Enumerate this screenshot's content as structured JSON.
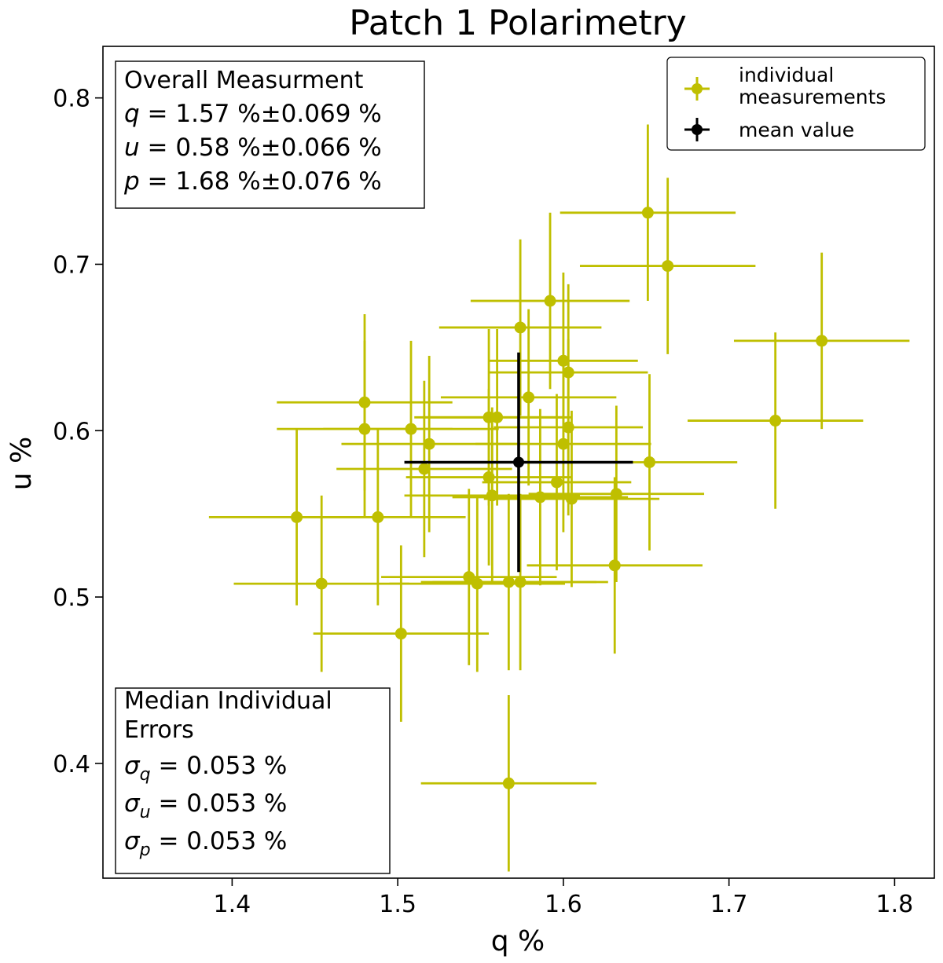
{
  "chart_data": {
    "type": "scatter",
    "title": "Patch 1 Polarimetry",
    "xlabel": "q %",
    "ylabel": "u %",
    "xlim": [
      1.322,
      1.824
    ],
    "ylim": [
      0.331,
      0.831
    ],
    "xticks": [
      1.4,
      1.5,
      1.6,
      1.7,
      1.8
    ],
    "yticks": [
      0.4,
      0.5,
      0.6,
      0.7,
      0.8
    ],
    "xtick_labels": [
      "1.4",
      "1.5",
      "1.6",
      "1.7",
      "1.8"
    ],
    "ytick_labels": [
      "0.4",
      "0.5",
      "0.6",
      "0.7",
      "0.8"
    ],
    "grid": false,
    "legend_position": "top-right",
    "colors": {
      "individual": "#bfbf00",
      "mean": "#000000"
    },
    "series": [
      {
        "name": "individual\n measurements",
        "color": "#bfbf00",
        "points": [
          {
            "x": 1.651,
            "y": 0.731,
            "xerr": 0.053,
            "yerr": 0.053
          },
          {
            "x": 1.663,
            "y": 0.699,
            "xerr": 0.053,
            "yerr": 0.053
          },
          {
            "x": 1.592,
            "y": 0.678,
            "xerr": 0.048,
            "yerr": 0.053
          },
          {
            "x": 1.574,
            "y": 0.662,
            "xerr": 0.049,
            "yerr": 0.053
          },
          {
            "x": 1.756,
            "y": 0.654,
            "xerr": 0.053,
            "yerr": 0.053
          },
          {
            "x": 1.6,
            "y": 0.642,
            "xerr": 0.045,
            "yerr": 0.053
          },
          {
            "x": 1.603,
            "y": 0.635,
            "xerr": 0.048,
            "yerr": 0.053
          },
          {
            "x": 1.579,
            "y": 0.62,
            "xerr": 0.053,
            "yerr": 0.053
          },
          {
            "x": 1.48,
            "y": 0.617,
            "xerr": 0.053,
            "yerr": 0.053
          },
          {
            "x": 1.555,
            "y": 0.608,
            "xerr": 0.045,
            "yerr": 0.053
          },
          {
            "x": 1.56,
            "y": 0.608,
            "xerr": 0.045,
            "yerr": 0.053
          },
          {
            "x": 1.728,
            "y": 0.606,
            "xerr": 0.053,
            "yerr": 0.053
          },
          {
            "x": 1.48,
            "y": 0.601,
            "xerr": 0.053,
            "yerr": 0.053
          },
          {
            "x": 1.508,
            "y": 0.601,
            "xerr": 0.053,
            "yerr": 0.053
          },
          {
            "x": 1.603,
            "y": 0.602,
            "xerr": 0.045,
            "yerr": 0.053
          },
          {
            "x": 1.519,
            "y": 0.592,
            "xerr": 0.053,
            "yerr": 0.053
          },
          {
            "x": 1.6,
            "y": 0.592,
            "xerr": 0.053,
            "yerr": 0.053
          },
          {
            "x": 1.652,
            "y": 0.581,
            "xerr": 0.053,
            "yerr": 0.053
          },
          {
            "x": 1.516,
            "y": 0.577,
            "xerr": 0.053,
            "yerr": 0.053
          },
          {
            "x": 1.555,
            "y": 0.572,
            "xerr": 0.05,
            "yerr": 0.053
          },
          {
            "x": 1.596,
            "y": 0.569,
            "xerr": 0.045,
            "yerr": 0.053
          },
          {
            "x": 1.632,
            "y": 0.562,
            "xerr": 0.053,
            "yerr": 0.053
          },
          {
            "x": 1.557,
            "y": 0.561,
            "xerr": 0.053,
            "yerr": 0.053
          },
          {
            "x": 1.586,
            "y": 0.56,
            "xerr": 0.053,
            "yerr": 0.053
          },
          {
            "x": 1.605,
            "y": 0.559,
            "xerr": 0.053,
            "yerr": 0.053
          },
          {
            "x": 1.439,
            "y": 0.548,
            "xerr": 0.053,
            "yerr": 0.053
          },
          {
            "x": 1.488,
            "y": 0.548,
            "xerr": 0.053,
            "yerr": 0.053
          },
          {
            "x": 1.631,
            "y": 0.519,
            "xerr": 0.053,
            "yerr": 0.053
          },
          {
            "x": 1.543,
            "y": 0.512,
            "xerr": 0.053,
            "yerr": 0.053
          },
          {
            "x": 1.454,
            "y": 0.508,
            "xerr": 0.053,
            "yerr": 0.053
          },
          {
            "x": 1.548,
            "y": 0.508,
            "xerr": 0.053,
            "yerr": 0.053
          },
          {
            "x": 1.567,
            "y": 0.509,
            "xerr": 0.053,
            "yerr": 0.053
          },
          {
            "x": 1.574,
            "y": 0.509,
            "xerr": 0.053,
            "yerr": 0.053
          },
          {
            "x": 1.502,
            "y": 0.478,
            "xerr": 0.053,
            "yerr": 0.053
          },
          {
            "x": 1.567,
            "y": 0.388,
            "xerr": 0.053,
            "yerr": 0.053
          }
        ]
      },
      {
        "name": "mean value",
        "color": "#000000",
        "points": [
          {
            "x": 1.573,
            "y": 0.581,
            "xerr": 0.069,
            "yerr": 0.066
          }
        ]
      }
    ],
    "annotations": {
      "overall": {
        "title": "Overall Measurment",
        "lines": [
          {
            "sym": "q",
            "sub": "",
            "text": " = 1.57 %±0.069 %"
          },
          {
            "sym": "u",
            "sub": "",
            "text": " = 0.58 %±0.066 %"
          },
          {
            "sym": "p",
            "sub": "",
            "text": " = 1.68 %±0.076 %"
          }
        ]
      },
      "median": {
        "title_lines": [
          "Median Individual",
          " Errors"
        ],
        "lines": [
          {
            "sym": "σ",
            "sub": "q",
            "text": " = 0.053 %"
          },
          {
            "sym": "σ",
            "sub": "u",
            "text": " = 0.053 %"
          },
          {
            "sym": "σ",
            "sub": "p",
            "text": " = 0.053 %"
          }
        ]
      }
    }
  }
}
